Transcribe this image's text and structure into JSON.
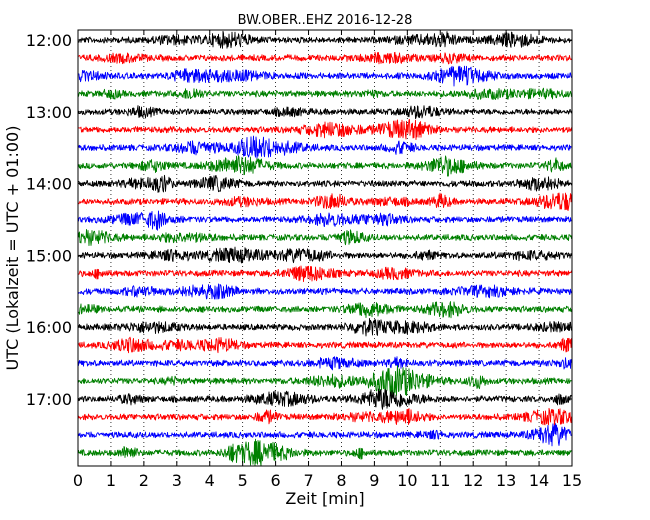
{
  "chart_data": {
    "type": "line",
    "title": "BW.OBER..EHZ 2016-12-28",
    "xlabel": "Zeit  [min]",
    "ylabel": "UTC (Lokalzeit = UTC + 01:00)",
    "xlim": [
      0,
      15
    ],
    "xticks": [
      "0",
      "1",
      "2",
      "3",
      "4",
      "5",
      "6",
      "7",
      "8",
      "9",
      "10",
      "11",
      "12",
      "13",
      "14",
      "15"
    ],
    "ytick_labels": [
      "12:00",
      "13:00",
      "14:00",
      "15:00",
      "16:00",
      "17:00"
    ],
    "grid": {
      "x": true,
      "y": false,
      "style": "dotted"
    },
    "colors": [
      "#000000",
      "#ff0000",
      "#0000ff",
      "#008000"
    ],
    "series": [
      {
        "start": "12:00",
        "color": "#000000"
      },
      {
        "start": "12:15",
        "color": "#ff0000"
      },
      {
        "start": "12:30",
        "color": "#0000ff"
      },
      {
        "start": "12:45",
        "color": "#008000"
      },
      {
        "start": "13:00",
        "color": "#000000"
      },
      {
        "start": "13:15",
        "color": "#ff0000"
      },
      {
        "start": "13:30",
        "color": "#0000ff"
      },
      {
        "start": "13:45",
        "color": "#008000"
      },
      {
        "start": "14:00",
        "color": "#000000"
      },
      {
        "start": "14:15",
        "color": "#ff0000"
      },
      {
        "start": "14:30",
        "color": "#0000ff"
      },
      {
        "start": "14:45",
        "color": "#008000"
      },
      {
        "start": "15:00",
        "color": "#000000"
      },
      {
        "start": "15:15",
        "color": "#ff0000"
      },
      {
        "start": "15:30",
        "color": "#0000ff"
      },
      {
        "start": "15:45",
        "color": "#008000"
      },
      {
        "start": "16:00",
        "color": "#000000"
      },
      {
        "start": "16:15",
        "color": "#ff0000"
      },
      {
        "start": "16:30",
        "color": "#0000ff"
      },
      {
        "start": "16:45",
        "color": "#008000"
      },
      {
        "start": "17:00",
        "color": "#000000"
      },
      {
        "start": "17:15",
        "color": "#ff0000"
      },
      {
        "start": "17:30",
        "color": "#0000ff"
      },
      {
        "start": "17:45",
        "color": "#008000"
      }
    ]
  }
}
